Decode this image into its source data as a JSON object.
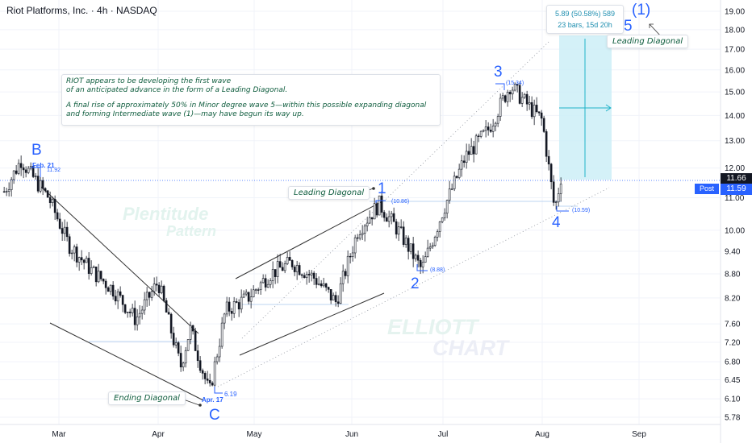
{
  "header": {
    "title": "Riot Platforms, Inc. · 4h · NASDAQ"
  },
  "note": {
    "line1": "RIOT appears to be developing the first wave",
    "line2": "of an anticipated advance in the form of a Leading Diagonal.",
    "line3": "A final rise of approximately 50% in Minor degree wave 5—within this possible expanding diagonal",
    "line4": " and forming Intermediate wave (1)—may have begun its way up."
  },
  "measure": {
    "line1": "5.89 (50.58%) 589",
    "line2": "23 bars, 15d 20h"
  },
  "callouts": {
    "leading_diagonal_top": "Leading Diagonal",
    "leading_diagonal_mid": "Leading Diagonal",
    "ending_diagonal": "Ending Diagonal"
  },
  "waves": {
    "B": "B",
    "C": "C",
    "w1": "1",
    "w2": "2",
    "w3": "3",
    "w4": "4",
    "w5": "5",
    "i1": "(1)"
  },
  "price_labels": {
    "feb21_date": "Feb. 21",
    "feb21_price": "11.92",
    "apr17_date": "Apr. 17",
    "apr17_price": "6.19",
    "w1_price": "(10.86)",
    "w2_price": "(8.88)",
    "w3_price": "(15.34)",
    "w4_price": "(10.59)"
  },
  "price_tags": {
    "last": "11.66",
    "post_label": "Post",
    "post_price": "11.59"
  },
  "watermarks": {
    "plentitude_1": "Plentitude",
    "plentitude_2": "Pattern",
    "elliott_1": "ELLIOTT",
    "elliott_2": "CHART"
  },
  "colors": {
    "candle": "#131722",
    "wave_label": "#2962ff",
    "target_box": "#c9eef7",
    "target_line": "#1fb2c8",
    "price_line": "#2962ff",
    "grid": "#f0f3fa"
  },
  "chart_data": {
    "type": "candlestick",
    "title": "Riot Platforms, Inc. · 4h · NASDAQ",
    "y_scale": "log",
    "ylim": [
      5.6,
      19.6
    ],
    "y_ticks": [
      "19.00",
      "18.00",
      "17.00",
      "16.00",
      "15.00",
      "14.00",
      "13.00",
      "12.00",
      "11.00",
      "10.00",
      "9.40",
      "8.80",
      "8.20",
      "7.60",
      "7.20",
      "6.80",
      "6.45",
      "6.10",
      "5.78"
    ],
    "x_ticks": [
      "Mar",
      "Apr",
      "May",
      "Jun",
      "Jul",
      "Aug",
      "Sep"
    ],
    "pivots": [
      {
        "label": "B",
        "date": "Feb. 21",
        "price": 11.92
      },
      {
        "label": "C",
        "date": "Apr. 17",
        "price": 6.19
      },
      {
        "label": "1",
        "price": 10.86
      },
      {
        "label": "2",
        "price": 8.88
      },
      {
        "label": "3",
        "price": 15.34
      },
      {
        "label": "4",
        "price": 10.59
      },
      {
        "label": "5",
        "note": "projected"
      }
    ],
    "last_price": 11.66,
    "post_price": 11.59,
    "projection": {
      "change": 5.89,
      "percent": 50.58,
      "ticks": 589,
      "bars": 23,
      "duration": "15d 20h"
    },
    "close_path": [
      {
        "date": "Feb 14",
        "close": 11.2
      },
      {
        "date": "Feb 19",
        "close": 12.3
      },
      {
        "date": "Feb 21",
        "close": 11.9
      },
      {
        "date": "Feb 27",
        "close": 11.0
      },
      {
        "date": "Mar 4",
        "close": 9.6
      },
      {
        "date": "Mar 11",
        "close": 8.9
      },
      {
        "date": "Mar 18",
        "close": 8.4
      },
      {
        "date": "Mar 25",
        "close": 7.7
      },
      {
        "date": "Apr 1",
        "close": 8.6
      },
      {
        "date": "Apr 8",
        "close": 6.7
      },
      {
        "date": "Apr 11",
        "close": 7.5
      },
      {
        "date": "Apr 17",
        "close": 6.2
      },
      {
        "date": "Apr 22",
        "close": 7.9
      },
      {
        "date": "Apr 29",
        "close": 8.2
      },
      {
        "date": "May 6",
        "close": 8.8
      },
      {
        "date": "May 13",
        "close": 9.1
      },
      {
        "date": "May 20",
        "close": 8.7
      },
      {
        "date": "May 27",
        "close": 8.1
      },
      {
        "date": "Jun 3",
        "close": 10.0
      },
      {
        "date": "Jun 10",
        "close": 10.8
      },
      {
        "date": "Jun 17",
        "close": 9.9
      },
      {
        "date": "Jun 24",
        "close": 8.9
      },
      {
        "date": "Jul 1",
        "close": 10.6
      },
      {
        "date": "Jul 8",
        "close": 12.4
      },
      {
        "date": "Jul 15",
        "close": 13.4
      },
      {
        "date": "Jul 22",
        "close": 15.3
      },
      {
        "date": "Jul 29",
        "close": 14.2
      },
      {
        "date": "Aug 1",
        "close": 13.8
      },
      {
        "date": "Aug 5",
        "close": 10.6
      },
      {
        "date": "Aug 7",
        "close": 11.7
      }
    ]
  }
}
